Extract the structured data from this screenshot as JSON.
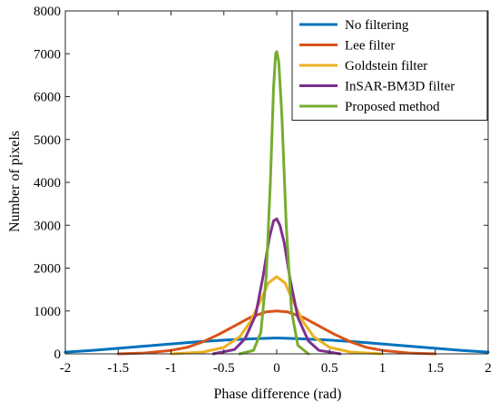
{
  "chart_data": {
    "type": "line",
    "xlabel": "Phase difference (rad)",
    "ylabel": "Number of pixels",
    "xlim": [
      -2,
      2
    ],
    "ylim": [
      0,
      8000
    ],
    "xticks": [
      "-2",
      "-1.5",
      "-1",
      "-0.5",
      "0",
      "0.5",
      "1",
      "1.5",
      "2"
    ],
    "yticks": [
      "0",
      "1000",
      "2000",
      "3000",
      "4000",
      "5000",
      "6000",
      "7000",
      "8000"
    ],
    "grid": false,
    "legend_position": "top-right",
    "colors": {
      "no_filtering": "#0072BD",
      "lee": "#D95319",
      "goldstein": "#EDB120",
      "bm3d": "#7E2F8E",
      "proposed": "#77AC30"
    },
    "series": [
      {
        "name": "No filtering",
        "color": "#0072BD",
        "x": [
          -2,
          -1.75,
          -1.5,
          -1.25,
          -1,
          -0.75,
          -0.5,
          -0.25,
          0,
          0.25,
          0.5,
          0.75,
          1,
          1.25,
          1.5,
          1.75,
          2
        ],
        "y": [
          40,
          80,
          130,
          180,
          230,
          280,
          320,
          350,
          370,
          350,
          320,
          280,
          230,
          180,
          130,
          80,
          40
        ]
      },
      {
        "name": "Lee filter",
        "color": "#D95319",
        "x": [
          -1.5,
          -1.25,
          -1,
          -0.85,
          -0.7,
          -0.55,
          -0.4,
          -0.25,
          -0.1,
          0,
          0.1,
          0.25,
          0.4,
          0.55,
          0.7,
          0.85,
          1,
          1.25,
          1.5
        ],
        "y": [
          0,
          20,
          80,
          150,
          280,
          450,
          650,
          850,
          980,
          1000,
          980,
          850,
          650,
          450,
          280,
          150,
          80,
          20,
          0
        ]
      },
      {
        "name": "Goldstein filter",
        "color": "#EDB120",
        "x": [
          -1.0,
          -0.7,
          -0.5,
          -0.35,
          -0.25,
          -0.15,
          -0.08,
          0,
          0.08,
          0.15,
          0.25,
          0.35,
          0.5,
          0.7,
          1.0
        ],
        "y": [
          0,
          40,
          150,
          400,
          750,
          1250,
          1650,
          1800,
          1650,
          1250,
          750,
          400,
          150,
          40,
          0
        ]
      },
      {
        "name": "InSAR-BM3D filter",
        "color": "#7E2F8E",
        "x": [
          -0.6,
          -0.4,
          -0.3,
          -0.2,
          -0.13,
          -0.07,
          -0.03,
          0,
          0.03,
          0.07,
          0.13,
          0.2,
          0.3,
          0.4,
          0.6
        ],
        "y": [
          0,
          100,
          350,
          900,
          1800,
          2700,
          3100,
          3150,
          3000,
          2600,
          1700,
          850,
          300,
          80,
          0
        ]
      },
      {
        "name": "Proposed method",
        "color": "#77AC30",
        "x": [
          -0.35,
          -0.22,
          -0.15,
          -0.1,
          -0.06,
          -0.03,
          -0.01,
          0,
          0.02,
          0.05,
          0.09,
          0.14,
          0.2,
          0.3
        ],
        "y": [
          0,
          80,
          500,
          1800,
          4000,
          6200,
          7000,
          7050,
          6800,
          5500,
          3000,
          1000,
          200,
          0
        ]
      }
    ]
  }
}
